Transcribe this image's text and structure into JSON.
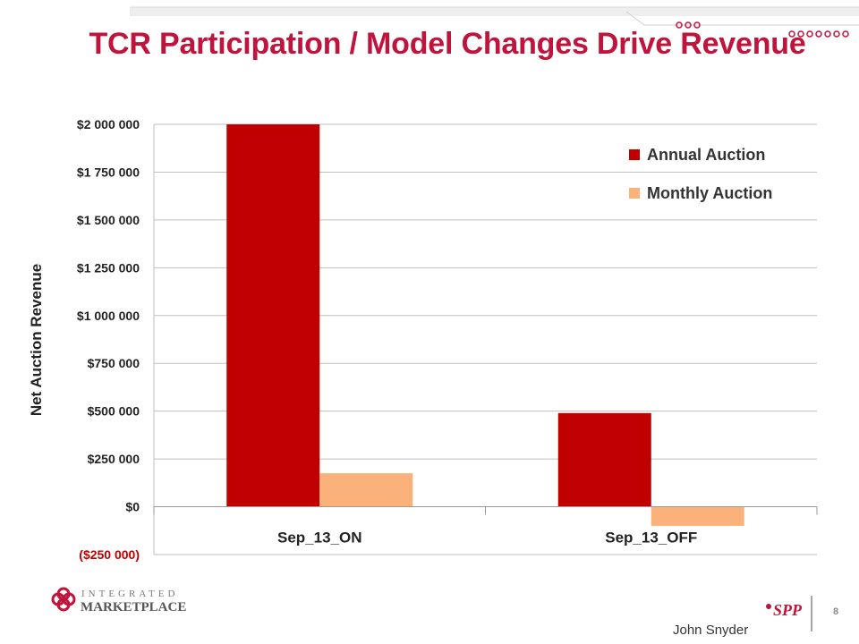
{
  "slide": {
    "title": "TCR Participation / Model Changes Drive Revenue",
    "page_number": "8",
    "presenter": "John Snyder",
    "logo_line1": "INTEGRATED",
    "logo_line2": "MARKETPLACE",
    "partner_logo": "SPP",
    "accent_color": "#c0143c"
  },
  "chart_data": {
    "type": "bar",
    "title": "",
    "xlabel": "",
    "ylabel": "Net Auction Revenue",
    "categories": [
      "Sep_13_ON",
      "Sep_13_OFF"
    ],
    "series": [
      {
        "name": "Annual Auction",
        "values": [
          2000000,
          490000
        ],
        "color": "#c00000"
      },
      {
        "name": "Monthly Auction",
        "values": [
          175000,
          -100000
        ],
        "color": "#fbb27a"
      }
    ],
    "ylim": [
      -250000,
      2000000
    ],
    "yticks": [
      2000000,
      1750000,
      1500000,
      1250000,
      1000000,
      750000,
      500000,
      250000,
      0,
      -250000
    ],
    "ytick_labels": [
      "$2 000 000",
      "$1 750 000",
      "$1 500 000",
      "$1 250 000",
      "$1 000 000",
      "$750 000",
      "$500 000",
      "$250 000",
      "$0",
      "($250 000)"
    ],
    "grid": true,
    "legend_position": "top-right",
    "negative_label_color": "#c00000"
  }
}
